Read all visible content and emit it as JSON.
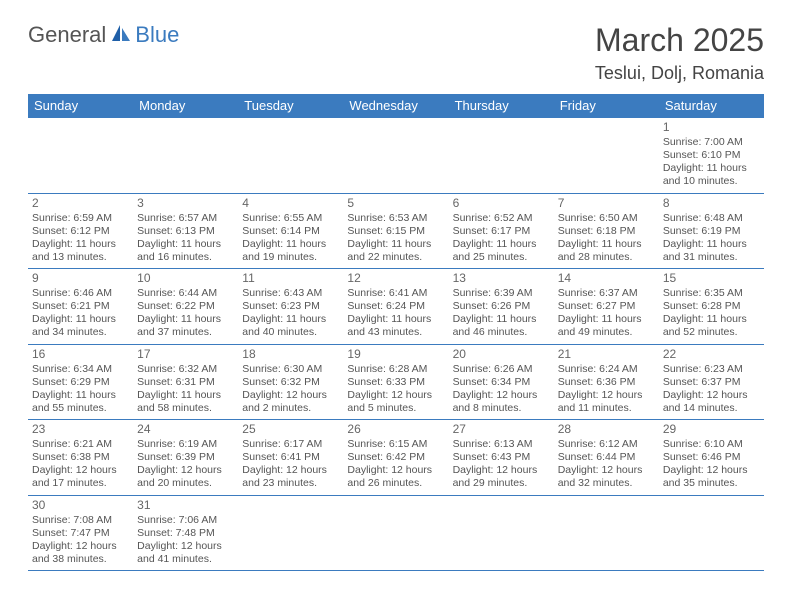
{
  "logo": {
    "part1": "General",
    "part2": "Blue"
  },
  "title": "March 2025",
  "location": "Teslui, Dolj, Romania",
  "colors": {
    "header_bg": "#3b7bbf",
    "header_text": "#ffffff",
    "border": "#3b7bbf",
    "body_text": "#555555",
    "title_text": "#444444"
  },
  "day_headers": [
    "Sunday",
    "Monday",
    "Tuesday",
    "Wednesday",
    "Thursday",
    "Friday",
    "Saturday"
  ],
  "weeks": [
    [
      null,
      null,
      null,
      null,
      null,
      null,
      {
        "n": "1",
        "sunrise": "7:00 AM",
        "sunset": "6:10 PM",
        "dl1": "Daylight: 11 hours",
        "dl2": "and 10 minutes."
      }
    ],
    [
      {
        "n": "2",
        "sunrise": "6:59 AM",
        "sunset": "6:12 PM",
        "dl1": "Daylight: 11 hours",
        "dl2": "and 13 minutes."
      },
      {
        "n": "3",
        "sunrise": "6:57 AM",
        "sunset": "6:13 PM",
        "dl1": "Daylight: 11 hours",
        "dl2": "and 16 minutes."
      },
      {
        "n": "4",
        "sunrise": "6:55 AM",
        "sunset": "6:14 PM",
        "dl1": "Daylight: 11 hours",
        "dl2": "and 19 minutes."
      },
      {
        "n": "5",
        "sunrise": "6:53 AM",
        "sunset": "6:15 PM",
        "dl1": "Daylight: 11 hours",
        "dl2": "and 22 minutes."
      },
      {
        "n": "6",
        "sunrise": "6:52 AM",
        "sunset": "6:17 PM",
        "dl1": "Daylight: 11 hours",
        "dl2": "and 25 minutes."
      },
      {
        "n": "7",
        "sunrise": "6:50 AM",
        "sunset": "6:18 PM",
        "dl1": "Daylight: 11 hours",
        "dl2": "and 28 minutes."
      },
      {
        "n": "8",
        "sunrise": "6:48 AM",
        "sunset": "6:19 PM",
        "dl1": "Daylight: 11 hours",
        "dl2": "and 31 minutes."
      }
    ],
    [
      {
        "n": "9",
        "sunrise": "6:46 AM",
        "sunset": "6:21 PM",
        "dl1": "Daylight: 11 hours",
        "dl2": "and 34 minutes."
      },
      {
        "n": "10",
        "sunrise": "6:44 AM",
        "sunset": "6:22 PM",
        "dl1": "Daylight: 11 hours",
        "dl2": "and 37 minutes."
      },
      {
        "n": "11",
        "sunrise": "6:43 AM",
        "sunset": "6:23 PM",
        "dl1": "Daylight: 11 hours",
        "dl2": "and 40 minutes."
      },
      {
        "n": "12",
        "sunrise": "6:41 AM",
        "sunset": "6:24 PM",
        "dl1": "Daylight: 11 hours",
        "dl2": "and 43 minutes."
      },
      {
        "n": "13",
        "sunrise": "6:39 AM",
        "sunset": "6:26 PM",
        "dl1": "Daylight: 11 hours",
        "dl2": "and 46 minutes."
      },
      {
        "n": "14",
        "sunrise": "6:37 AM",
        "sunset": "6:27 PM",
        "dl1": "Daylight: 11 hours",
        "dl2": "and 49 minutes."
      },
      {
        "n": "15",
        "sunrise": "6:35 AM",
        "sunset": "6:28 PM",
        "dl1": "Daylight: 11 hours",
        "dl2": "and 52 minutes."
      }
    ],
    [
      {
        "n": "16",
        "sunrise": "6:34 AM",
        "sunset": "6:29 PM",
        "dl1": "Daylight: 11 hours",
        "dl2": "and 55 minutes."
      },
      {
        "n": "17",
        "sunrise": "6:32 AM",
        "sunset": "6:31 PM",
        "dl1": "Daylight: 11 hours",
        "dl2": "and 58 minutes."
      },
      {
        "n": "18",
        "sunrise": "6:30 AM",
        "sunset": "6:32 PM",
        "dl1": "Daylight: 12 hours",
        "dl2": "and 2 minutes."
      },
      {
        "n": "19",
        "sunrise": "6:28 AM",
        "sunset": "6:33 PM",
        "dl1": "Daylight: 12 hours",
        "dl2": "and 5 minutes."
      },
      {
        "n": "20",
        "sunrise": "6:26 AM",
        "sunset": "6:34 PM",
        "dl1": "Daylight: 12 hours",
        "dl2": "and 8 minutes."
      },
      {
        "n": "21",
        "sunrise": "6:24 AM",
        "sunset": "6:36 PM",
        "dl1": "Daylight: 12 hours",
        "dl2": "and 11 minutes."
      },
      {
        "n": "22",
        "sunrise": "6:23 AM",
        "sunset": "6:37 PM",
        "dl1": "Daylight: 12 hours",
        "dl2": "and 14 minutes."
      }
    ],
    [
      {
        "n": "23",
        "sunrise": "6:21 AM",
        "sunset": "6:38 PM",
        "dl1": "Daylight: 12 hours",
        "dl2": "and 17 minutes."
      },
      {
        "n": "24",
        "sunrise": "6:19 AM",
        "sunset": "6:39 PM",
        "dl1": "Daylight: 12 hours",
        "dl2": "and 20 minutes."
      },
      {
        "n": "25",
        "sunrise": "6:17 AM",
        "sunset": "6:41 PM",
        "dl1": "Daylight: 12 hours",
        "dl2": "and 23 minutes."
      },
      {
        "n": "26",
        "sunrise": "6:15 AM",
        "sunset": "6:42 PM",
        "dl1": "Daylight: 12 hours",
        "dl2": "and 26 minutes."
      },
      {
        "n": "27",
        "sunrise": "6:13 AM",
        "sunset": "6:43 PM",
        "dl1": "Daylight: 12 hours",
        "dl2": "and 29 minutes."
      },
      {
        "n": "28",
        "sunrise": "6:12 AM",
        "sunset": "6:44 PM",
        "dl1": "Daylight: 12 hours",
        "dl2": "and 32 minutes."
      },
      {
        "n": "29",
        "sunrise": "6:10 AM",
        "sunset": "6:46 PM",
        "dl1": "Daylight: 12 hours",
        "dl2": "and 35 minutes."
      }
    ],
    [
      {
        "n": "30",
        "sunrise": "7:08 AM",
        "sunset": "7:47 PM",
        "dl1": "Daylight: 12 hours",
        "dl2": "and 38 minutes."
      },
      {
        "n": "31",
        "sunrise": "7:06 AM",
        "sunset": "7:48 PM",
        "dl1": "Daylight: 12 hours",
        "dl2": "and 41 minutes."
      },
      null,
      null,
      null,
      null,
      null
    ]
  ],
  "labels": {
    "sunrise_prefix": "Sunrise: ",
    "sunset_prefix": "Sunset: "
  }
}
